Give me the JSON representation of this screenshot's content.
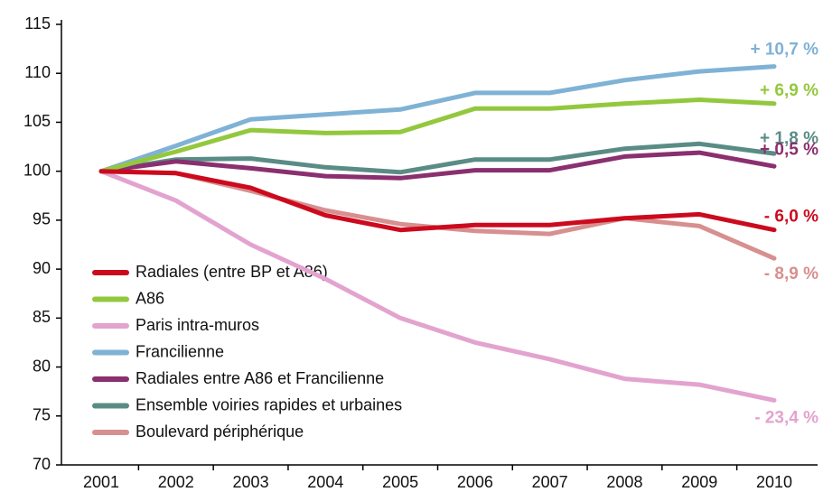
{
  "chart_data": {
    "type": "line",
    "categories": [
      "2001",
      "2002",
      "2003",
      "2004",
      "2005",
      "2006",
      "2007",
      "2008",
      "2009",
      "2010"
    ],
    "ylim": [
      70,
      115
    ],
    "yticks": [
      70,
      75,
      80,
      85,
      90,
      95,
      100,
      105,
      110,
      115
    ],
    "grid": false,
    "legend": "lower left",
    "series": [
      {
        "name": "Radiales (entre BP et A86)",
        "color": "#cc0a1e",
        "end_label": "- 6,0 %",
        "values": [
          100,
          99.8,
          98.3,
          95.5,
          94.0,
          94.5,
          94.5,
          95.2,
          95.6,
          94.0
        ]
      },
      {
        "name": "A86",
        "color": "#93c83e",
        "end_label": "+ 6,9 %",
        "values": [
          100,
          102.0,
          104.2,
          103.9,
          104.0,
          106.4,
          106.4,
          106.9,
          107.3,
          106.9
        ]
      },
      {
        "name": "Paris intra-muros",
        "color": "#e3a3cf",
        "end_label": "- 23,4 %",
        "values": [
          100,
          97.0,
          92.5,
          89.0,
          85.0,
          82.5,
          80.8,
          78.8,
          78.2,
          76.6
        ]
      },
      {
        "name": "Francilienne",
        "color": "#7fb2d5",
        "end_label": "+ 10,7 %",
        "values": [
          100,
          102.6,
          105.3,
          105.8,
          106.3,
          108.0,
          108.0,
          109.3,
          110.2,
          110.7
        ]
      },
      {
        "name": "Radiales entre A86 et Francilienne",
        "color": "#8a2f6f",
        "end_label": "+ 0,5 %",
        "values": [
          100,
          101.0,
          100.3,
          99.5,
          99.3,
          100.1,
          100.1,
          101.5,
          101.9,
          100.5
        ]
      },
      {
        "name": "Ensemble voiries rapides et urbaines",
        "color": "#5a8c86",
        "end_label": "+ 1,8 %",
        "values": [
          100,
          101.2,
          101.3,
          100.4,
          99.9,
          101.2,
          101.2,
          102.3,
          102.8,
          101.8
        ]
      },
      {
        "name": "Boulevard périphérique",
        "color": "#d88f8f",
        "end_label": "- 8,9 %",
        "values": [
          100,
          99.8,
          98.0,
          96.0,
          94.6,
          93.9,
          93.6,
          95.2,
          94.4,
          91.1
        ]
      }
    ]
  }
}
